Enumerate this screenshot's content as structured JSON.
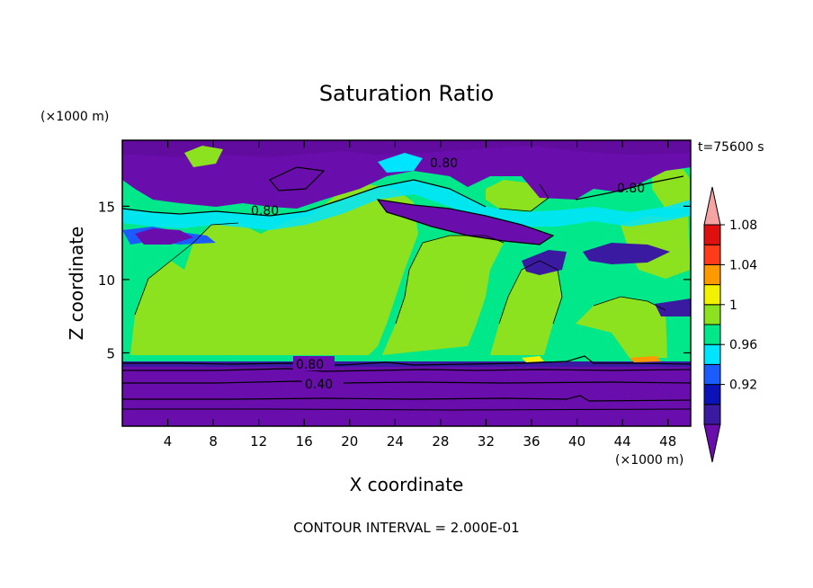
{
  "chart_data": {
    "type": "heatmap",
    "title": "Saturation Ratio",
    "xlabel": "X coordinate",
    "ylabel": "Z coordinate",
    "x_unit": "(×1000 m)",
    "y_unit": "(×1000 m)",
    "time_label": "t=75600 s",
    "footer": "CONTOUR INTERVAL = 2.000E-01",
    "xlim": [
      0,
      50
    ],
    "ylim": [
      0,
      19.5
    ],
    "x_ticks": [
      "4",
      "8",
      "12",
      "16",
      "20",
      "24",
      "28",
      "32",
      "36",
      "40",
      "44",
      "48"
    ],
    "y_ticks": [
      "5",
      "10",
      "15"
    ],
    "colorbar": {
      "levels": [
        "0.92",
        "0.96",
        "1",
        "1.04",
        "1.08"
      ],
      "colors": [
        "#6a0dad",
        "#3a1aa0",
        "#0b12b8",
        "#1a5cff",
        "#00e5ff",
        "#00e88a",
        "#8ce21e",
        "#f2f200",
        "#ff9900",
        "#ff3b1a",
        "#e01010",
        "#f5a3a3"
      ]
    },
    "regions": [
      {
        "name": "lower-dry-layer",
        "x": [
          0,
          50
        ],
        "z": [
          0,
          4.5
        ],
        "value_class": "below-0.92"
      },
      {
        "name": "mid-moist-layer",
        "x": [
          0,
          50
        ],
        "z": [
          4.5,
          15
        ],
        "value_class": "0.96-1.04"
      },
      {
        "name": "upper-dry-layer",
        "x": [
          0,
          50
        ],
        "z": [
          15,
          19.5
        ],
        "value_class": "below-0.92"
      }
    ],
    "contour_labels": [
      {
        "text": "0.80",
        "x": 15.3,
        "z": 4.2
      },
      {
        "text": "0.40",
        "x": 17.5,
        "z": 2.7
      },
      {
        "text": "0.80",
        "x": 12.5,
        "z": 14.9
      },
      {
        "text": "0.80",
        "x": 28,
        "z": 18.2
      },
      {
        "text": "0.80",
        "x": 43,
        "z": 16.5
      }
    ]
  }
}
